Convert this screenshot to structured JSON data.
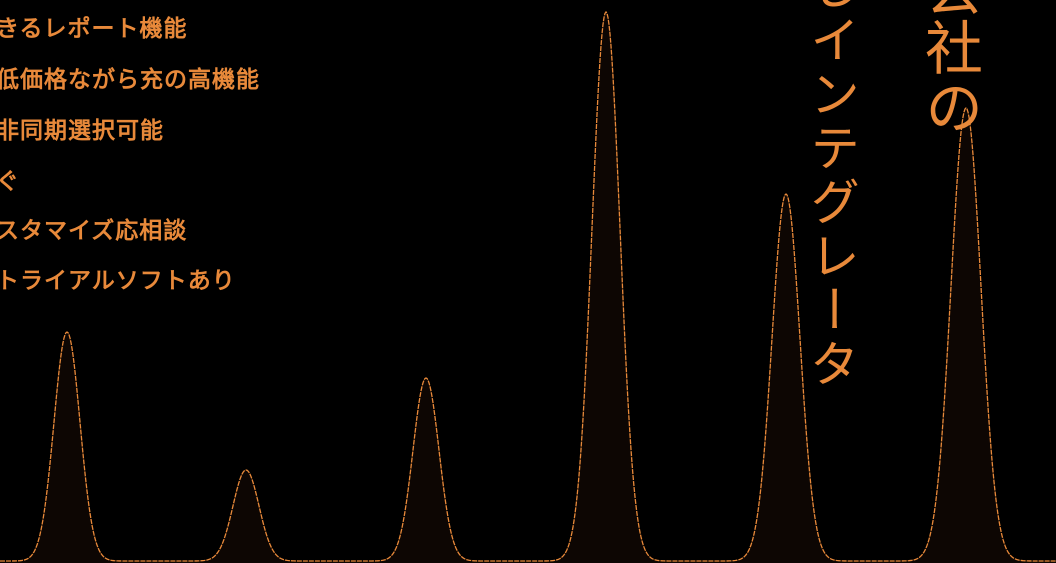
{
  "colors": {
    "background": "#000000",
    "accent": "#E8893A",
    "fill": "#0D0603"
  },
  "features": [
    "きるレポート機能",
    "低価格ながら充の高機能",
    "非同期選択可能",
    "ぐ",
    "スタマイズ応相談",
    "トライアルソフトあり"
  ],
  "vertical_text": {
    "phrase_a": "しインテグレータ",
    "phrase_b": "会社の"
  }
}
